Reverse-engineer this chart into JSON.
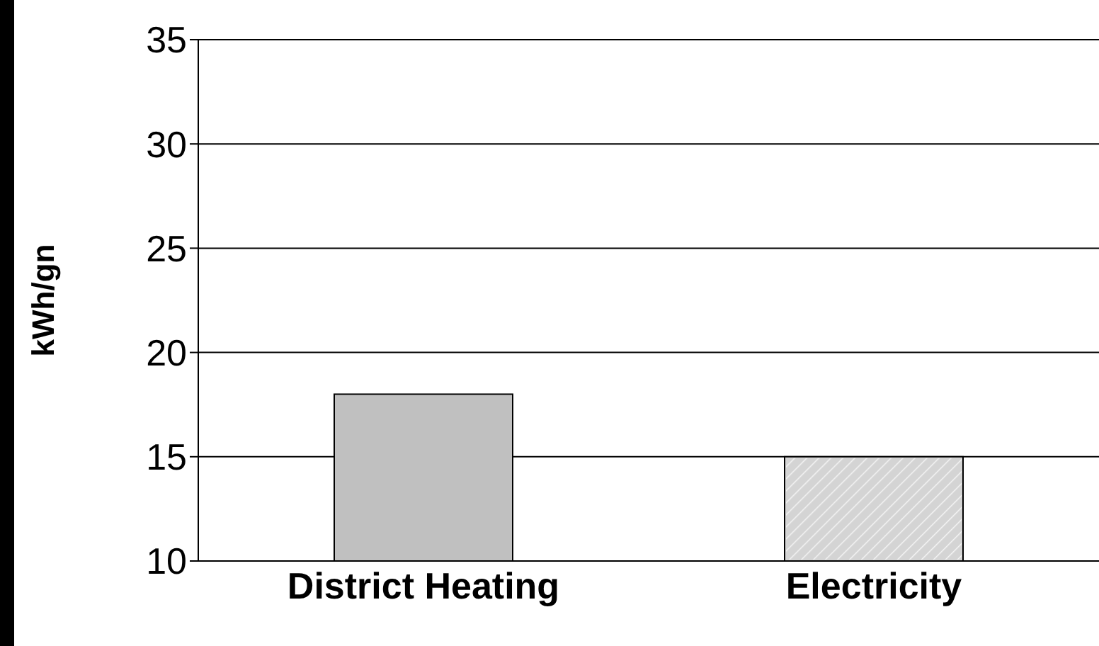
{
  "chart_data": {
    "type": "bar",
    "categories": [
      "District Heating",
      "Electricity"
    ],
    "values": [
      18,
      15
    ],
    "colors": [
      "#c0c0c0",
      "#d4d4d4"
    ],
    "ylabel": "kWh/gn",
    "ylim": [
      10,
      35
    ],
    "yticks": [
      10,
      15,
      20,
      25,
      30,
      35
    ],
    "grid": "y"
  }
}
